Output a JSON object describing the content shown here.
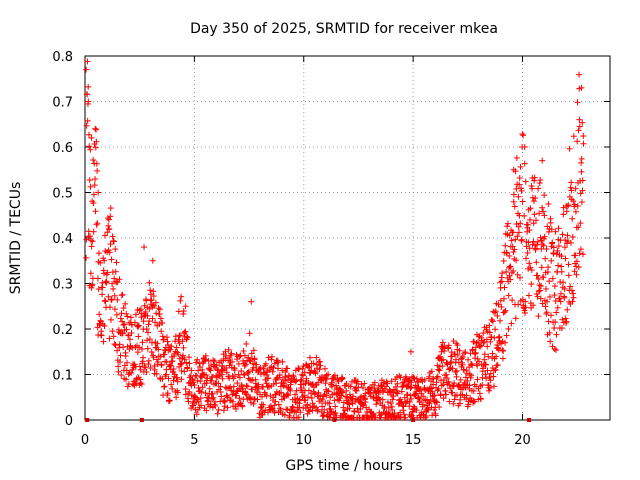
{
  "chart_data": {
    "type": "scatter",
    "title": "Day 350 of 2025, SRMTID for receiver mkea",
    "xlabel": "GPS time / hours",
    "ylabel": "SRMTID / TECUs",
    "xlim": [
      0,
      24
    ],
    "ylim": [
      0,
      0.8
    ],
    "xticks": [
      0,
      5,
      10,
      15,
      20
    ],
    "yticks": [
      0,
      0.1,
      0.2,
      0.3,
      0.4,
      0.5,
      0.6,
      0.7,
      0.8
    ],
    "xtick_labels": [
      "0",
      "5",
      "10",
      "15",
      "20"
    ],
    "ytick_labels": [
      "0",
      "0.1",
      "0.2",
      "0.3",
      "0.4",
      "0.5",
      "0.6",
      "0.7",
      "0.8"
    ],
    "grid": true,
    "marker": "plus",
    "marker_color": "#ff0000",
    "series": [
      {
        "name": "SRMTID",
        "trend": [
          [
            0.05,
            0.6
          ],
          [
            0.1,
            0.74
          ],
          [
            0.2,
            0.45
          ],
          [
            0.35,
            0.42
          ],
          [
            0.5,
            0.5
          ],
          [
            0.6,
            0.31
          ],
          [
            0.8,
            0.25
          ],
          [
            1.0,
            0.3
          ],
          [
            1.2,
            0.35
          ],
          [
            1.5,
            0.22
          ],
          [
            2.0,
            0.14
          ],
          [
            2.5,
            0.16
          ],
          [
            3.0,
            0.22
          ],
          [
            3.3,
            0.18
          ],
          [
            3.6,
            0.13
          ],
          [
            4.0,
            0.09
          ],
          [
            4.4,
            0.18
          ],
          [
            4.7,
            0.11
          ],
          [
            5.0,
            0.07
          ],
          [
            5.5,
            0.08
          ],
          [
            6.0,
            0.07
          ],
          [
            6.5,
            0.09
          ],
          [
            7.0,
            0.08
          ],
          [
            7.5,
            0.12
          ],
          [
            8.0,
            0.06
          ],
          [
            8.5,
            0.08
          ],
          [
            9.0,
            0.07
          ],
          [
            9.5,
            0.05
          ],
          [
            10.0,
            0.07
          ],
          [
            10.5,
            0.08
          ],
          [
            11.0,
            0.06
          ],
          [
            11.5,
            0.05
          ],
          [
            12.0,
            0.04
          ],
          [
            12.5,
            0.04
          ],
          [
            13.0,
            0.03
          ],
          [
            13.5,
            0.04
          ],
          [
            14.0,
            0.04
          ],
          [
            14.5,
            0.05
          ],
          [
            15.0,
            0.05
          ],
          [
            15.5,
            0.04
          ],
          [
            16.0,
            0.06
          ],
          [
            16.5,
            0.12
          ],
          [
            17.0,
            0.1
          ],
          [
            17.5,
            0.09
          ],
          [
            18.0,
            0.12
          ],
          [
            18.5,
            0.14
          ],
          [
            19.0,
            0.2
          ],
          [
            19.3,
            0.3
          ],
          [
            19.6,
            0.38
          ],
          [
            20.0,
            0.45
          ],
          [
            20.3,
            0.35
          ],
          [
            20.6,
            0.4
          ],
          [
            21.0,
            0.38
          ],
          [
            21.3,
            0.3
          ],
          [
            21.6,
            0.28
          ],
          [
            22.0,
            0.38
          ],
          [
            22.3,
            0.45
          ],
          [
            22.6,
            0.55
          ],
          [
            22.8,
            0.45
          ]
        ],
        "peaks": [
          [
            0.05,
            0.77
          ],
          [
            0.15,
            0.7
          ],
          [
            0.3,
            0.62
          ],
          [
            0.6,
            0.5
          ],
          [
            1.1,
            0.42
          ],
          [
            2.7,
            0.38
          ],
          [
            3.1,
            0.35
          ],
          [
            4.6,
            0.25
          ],
          [
            7.6,
            0.26
          ],
          [
            14.9,
            0.15
          ],
          [
            16.3,
            0.15
          ],
          [
            19.6,
            0.55
          ],
          [
            20.1,
            0.6
          ],
          [
            20.9,
            0.57
          ],
          [
            22.6,
            0.66
          ],
          [
            22.7,
            0.73
          ]
        ],
        "gaps": [
          0.1,
          2.6,
          11.4,
          15.0,
          20.3
        ]
      }
    ]
  }
}
